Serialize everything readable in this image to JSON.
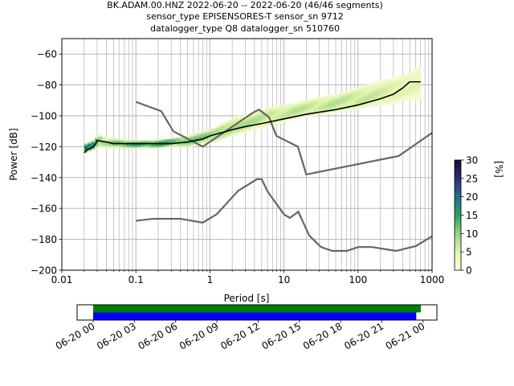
{
  "title_lines": [
    "BK.ADAM.00.HNZ   2022-06-20 -- 2022-06-20  (46/46 segments)",
    "sensor_type EPISENSORES-T sensor_sn 9712",
    "datalogger_type Q8 datalogger_sn 510760"
  ],
  "colorbar": {
    "label": "[%]",
    "ticks": [
      "0",
      "5",
      "10",
      "15",
      "20",
      "25",
      "30"
    ],
    "tick_values": [
      0,
      5,
      10,
      15,
      20,
      25,
      30
    ],
    "range": [
      0,
      30
    ]
  },
  "chart_data": [
    {
      "type": "heatmap",
      "title": "BK.ADAM.00.HNZ   2022-06-20 -- 2022-06-20  (46/46 segments)",
      "xlabel": "Period [s]",
      "ylabel": "Power [dB]",
      "xscale": "log",
      "xlim": [
        0.01,
        1000
      ],
      "ylim": [
        -200,
        -50
      ],
      "x_ticks": [
        "0.01",
        "0.1",
        "1",
        "10",
        "100",
        "1000"
      ],
      "x_tick_values": [
        0.01,
        0.1,
        1,
        10,
        100,
        1000
      ],
      "y_ticks": [
        "−60",
        "−80",
        "−100",
        "−120",
        "−140",
        "−160",
        "−180",
        "−200"
      ],
      "y_tick_values": [
        -60,
        -80,
        -100,
        -120,
        -140,
        -160,
        -180,
        -200
      ],
      "grid": true,
      "colormap": [
        "#ffffe5",
        "#d9f0a3",
        "#78c679",
        "#2aa06a",
        "#1f7f83",
        "#2f4b8a",
        "#2d1e5c",
        "#1b0b3a"
      ],
      "density_band": [
        [
          0.02,
          -124,
          -118,
          20
        ],
        [
          0.025,
          -122,
          -116,
          18
        ],
        [
          0.03,
          -120,
          -112,
          8
        ],
        [
          0.04,
          -121,
          -114,
          6
        ],
        [
          0.06,
          -121,
          -115,
          10
        ],
        [
          0.1,
          -121,
          -116,
          12
        ],
        [
          0.2,
          -121,
          -115,
          12
        ],
        [
          0.3,
          -120,
          -114,
          10
        ],
        [
          0.5,
          -120,
          -112,
          8
        ],
        [
          1,
          -118,
          -108,
          7
        ],
        [
          2,
          -113,
          -101,
          6
        ],
        [
          5,
          -108,
          -95,
          5
        ],
        [
          10,
          -104,
          -92,
          5
        ],
        [
          20,
          -101,
          -89,
          5
        ],
        [
          50,
          -98,
          -85,
          5
        ],
        [
          100,
          -96,
          -81,
          5
        ],
        [
          200,
          -94,
          -76,
          4
        ],
        [
          400,
          -92,
          -72,
          3
        ],
        [
          700,
          -90,
          -66,
          3
        ]
      ],
      "mean_curve": [
        [
          0.02,
          -124
        ],
        [
          0.022,
          -122
        ],
        [
          0.025,
          -121
        ],
        [
          0.028,
          -119
        ],
        [
          0.03,
          -116
        ],
        [
          0.04,
          -117
        ],
        [
          0.05,
          -118
        ],
        [
          0.1,
          -118
        ],
        [
          0.2,
          -118
        ],
        [
          0.3,
          -118
        ],
        [
          0.5,
          -117
        ],
        [
          0.8,
          -115
        ],
        [
          1,
          -113
        ],
        [
          2,
          -109
        ],
        [
          3,
          -107
        ],
        [
          5,
          -105
        ],
        [
          10,
          -102
        ],
        [
          20,
          -99
        ],
        [
          50,
          -96
        ],
        [
          100,
          -93
        ],
        [
          200,
          -89
        ],
        [
          300,
          -86
        ],
        [
          400,
          -82
        ],
        [
          500,
          -78
        ],
        [
          700,
          -78
        ]
      ],
      "nhnm_curve": [
        [
          0.1,
          -91
        ],
        [
          0.22,
          -97
        ],
        [
          0.32,
          -110
        ],
        [
          0.8,
          -120
        ],
        [
          3.8,
          -98
        ],
        [
          4.6,
          -96
        ],
        [
          6.3,
          -101
        ],
        [
          7.9,
          -113
        ],
        [
          15.4,
          -120
        ],
        [
          20,
          -138
        ],
        [
          354.8,
          -126
        ],
        [
          1000,
          -111
        ]
      ],
      "nlnm_curve": [
        [
          0.1,
          -168
        ],
        [
          0.17,
          -166.7
        ],
        [
          0.4,
          -166.7
        ],
        [
          0.8,
          -169.2
        ],
        [
          1.24,
          -163.7
        ],
        [
          2.4,
          -148.6
        ],
        [
          4.3,
          -141.1
        ],
        [
          5,
          -141.1
        ],
        [
          6,
          -149
        ],
        [
          10,
          -163.8
        ],
        [
          12,
          -166.2
        ],
        [
          15.6,
          -162.1
        ],
        [
          21.9,
          -177.5
        ],
        [
          31.6,
          -185
        ],
        [
          45,
          -187.5
        ],
        [
          70,
          -187.5
        ],
        [
          101,
          -185
        ],
        [
          154,
          -185
        ],
        [
          328,
          -187.5
        ],
        [
          600,
          -184.4
        ],
        [
          1000,
          -178
        ]
      ]
    },
    {
      "type": "bar",
      "orientation": "horizontal",
      "x_ticks": [
        "06-20 00",
        "06-20 03",
        "06-20 06",
        "06-20 09",
        "06-20 12",
        "06-20 15",
        "06-20 18",
        "06-20 21",
        "06-21 00"
      ],
      "x_tick_values": [
        "2022-06-20 00:00",
        "2022-06-20 03:00",
        "2022-06-20 06:00",
        "2022-06-20 09:00",
        "2022-06-20 12:00",
        "2022-06-20 15:00",
        "2022-06-20 18:00",
        "2022-06-20 21:00",
        "2022-06-21 00:00"
      ],
      "xlim": [
        "2022-06-19 22:50",
        "2022-06-21 01:00"
      ],
      "bars": [
        {
          "start": "2022-06-20 00:00",
          "end": "2022-06-20 23:50",
          "color": "#008000"
        },
        {
          "start": "2022-06-20 00:00",
          "end": "2022-06-20 23:30",
          "color": "#0000ff"
        }
      ]
    }
  ]
}
